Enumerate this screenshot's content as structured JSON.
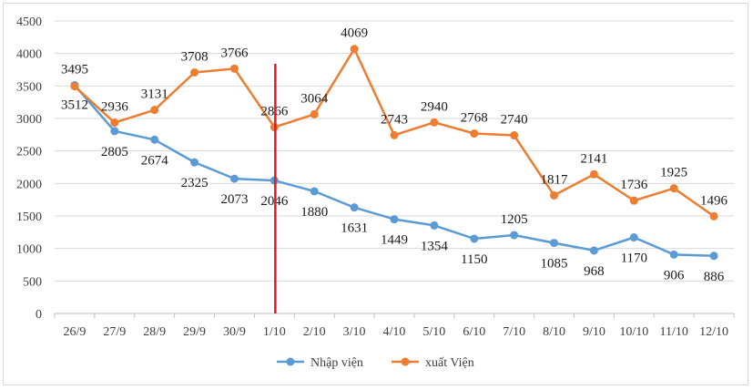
{
  "chart_data": {
    "type": "line",
    "title": "",
    "xlabel": "",
    "ylabel": "",
    "ylim": [
      0,
      4500
    ],
    "yticks": [
      0,
      500,
      1000,
      1500,
      2000,
      2500,
      3000,
      3500,
      4000,
      4500
    ],
    "grid": true,
    "legend_position": "bottom",
    "categories": [
      "26/9",
      "27/9",
      "28/9",
      "29/9",
      "30/9",
      "1/10",
      "2/10",
      "3/10",
      "4/10",
      "5/10",
      "6/10",
      "7/10",
      "8/10",
      "9/10",
      "10/10",
      "11/10",
      "12/10"
    ],
    "series": [
      {
        "name": "Nhập viện",
        "color": "#5b9bd5",
        "values": [
          3512,
          2805,
          2674,
          2325,
          2073,
          2046,
          1880,
          1631,
          1449,
          1354,
          1150,
          1205,
          1085,
          968,
          1170,
          906,
          886
        ]
      },
      {
        "name": "xuất Viện",
        "color": "#ed7d31",
        "values": [
          3495,
          2936,
          3131,
          3708,
          3766,
          2866,
          3064,
          4069,
          2743,
          2940,
          2768,
          2740,
          1817,
          2141,
          1736,
          1925,
          1496
        ]
      }
    ],
    "annotation": {
      "type": "vertical-line",
      "category": "1/10",
      "color": "#e8161c"
    }
  }
}
